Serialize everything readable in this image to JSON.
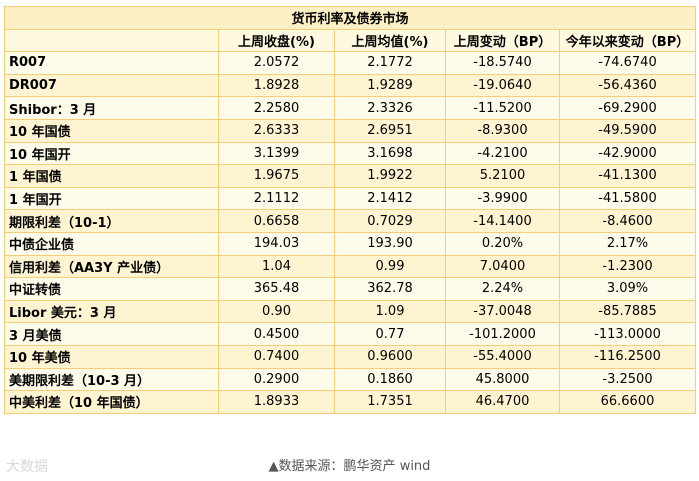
{
  "title": "货币利率及债券市场",
  "headers": [
    "",
    "上周收盘(%)",
    "上周均值(%)",
    "上周变动（BP）",
    "今年以来变动（BP）"
  ],
  "rows": [
    [
      "R007",
      "2.0572",
      "2.1772",
      "-18.5740",
      "-74.6740"
    ],
    [
      "DR007",
      "1.8928",
      "1.9289",
      "-19.0640",
      "-56.4360"
    ],
    [
      "Shibor：3 月",
      "2.2580",
      "2.3326",
      "-11.5200",
      "-69.2900"
    ],
    [
      "10 年国债",
      "2.6333",
      "2.6951",
      "-8.9300",
      "-49.5900"
    ],
    [
      "10 年国开",
      "3.1399",
      "3.1698",
      "-4.2100",
      "-42.9000"
    ],
    [
      "1 年国债",
      "1.9675",
      "1.9922",
      "5.2100",
      "-41.1300"
    ],
    [
      "1 年国开",
      "2.1112",
      "2.1412",
      "-3.9900",
      "-41.5800"
    ],
    [
      "期限利差（10-1）",
      "0.6658",
      "0.7029",
      "-14.1400",
      "-8.4600"
    ],
    [
      "中债企业债",
      "194.03",
      "193.90",
      "0.20%",
      "2.17%"
    ],
    [
      "信用利差（AA3Y 产业债）",
      "1.04",
      "0.99",
      "7.0400",
      "-1.2300"
    ],
    [
      "中证转债",
      "365.48",
      "362.78",
      "2.24%",
      "3.09%"
    ],
    [
      "Libor 美元：3 月",
      "0.90",
      "1.09",
      "-37.0048",
      "-85.7885"
    ],
    [
      "3 月美债",
      "0.4500",
      "0.77",
      "-101.2000",
      "-113.0000"
    ],
    [
      "10 年美债",
      "0.7400",
      "0.9600",
      "-55.4000",
      "-116.2500"
    ],
    [
      "美期限利差（10-3 月）",
      "0.2900",
      "0.1860",
      "45.8000",
      "-3.2500"
    ],
    [
      "中美利差（10 年国债）",
      "1.8933",
      "1.7351",
      "46.4700",
      "66.6600"
    ]
  ],
  "footer": "▲数据来源：鹏华资产 wind",
  "watermark": "大数据"
}
